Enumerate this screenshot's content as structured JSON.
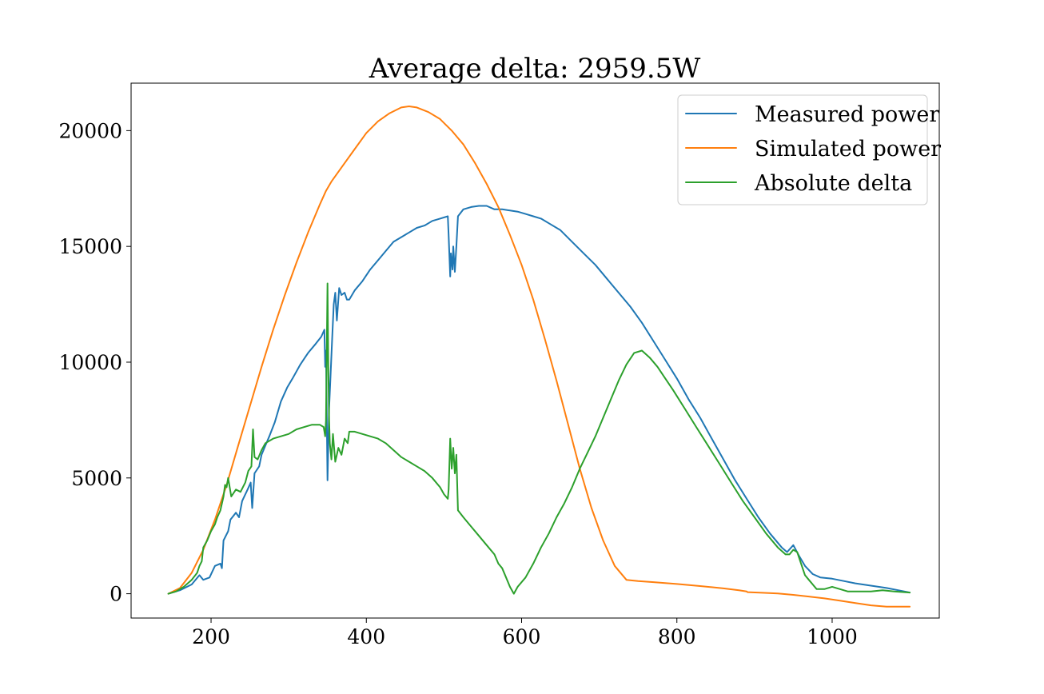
{
  "chart_data": {
    "type": "line",
    "title": "Average delta: 2959.5W",
    "xlabel": "",
    "ylabel": "",
    "xlim": [
      97,
      1138
    ],
    "ylim": [
      -1050,
      22050
    ],
    "xticks": [
      200,
      400,
      600,
      800,
      1000
    ],
    "yticks": [
      0,
      5000,
      10000,
      15000,
      20000
    ],
    "grid": false,
    "legend_position": "top-right",
    "series": [
      {
        "name": "Measured power",
        "color": "#1f77b4",
        "points": [
          [
            145,
            0
          ],
          [
            160,
            150
          ],
          [
            175,
            400
          ],
          [
            185,
            800
          ],
          [
            190,
            600
          ],
          [
            198,
            700
          ],
          [
            205,
            1200
          ],
          [
            212,
            1300
          ],
          [
            214,
            1100
          ],
          [
            216,
            2300
          ],
          [
            222,
            2700
          ],
          [
            225,
            3200
          ],
          [
            232,
            3500
          ],
          [
            236,
            3300
          ],
          [
            240,
            4000
          ],
          [
            247,
            4500
          ],
          [
            251,
            4800
          ],
          [
            253,
            3700
          ],
          [
            256,
            5200
          ],
          [
            262,
            5500
          ],
          [
            265,
            6000
          ],
          [
            270,
            6400
          ],
          [
            275,
            6800
          ],
          [
            282,
            7400
          ],
          [
            290,
            8300
          ],
          [
            298,
            8900
          ],
          [
            305,
            9300
          ],
          [
            315,
            9900
          ],
          [
            325,
            10400
          ],
          [
            335,
            10800
          ],
          [
            342,
            11100
          ],
          [
            346,
            11400
          ],
          [
            347,
            9800
          ],
          [
            348,
            10500
          ],
          [
            350,
            4900
          ],
          [
            352,
            8000
          ],
          [
            354,
            9500
          ],
          [
            356,
            11000
          ],
          [
            358,
            12500
          ],
          [
            360,
            13000
          ],
          [
            362,
            11800
          ],
          [
            365,
            13200
          ],
          [
            368,
            12900
          ],
          [
            372,
            13000
          ],
          [
            375,
            12700
          ],
          [
            378,
            12700
          ],
          [
            385,
            13100
          ],
          [
            395,
            13500
          ],
          [
            405,
            14000
          ],
          [
            415,
            14400
          ],
          [
            425,
            14800
          ],
          [
            435,
            15200
          ],
          [
            445,
            15400
          ],
          [
            455,
            15600
          ],
          [
            465,
            15800
          ],
          [
            475,
            15900
          ],
          [
            485,
            16100
          ],
          [
            495,
            16200
          ],
          [
            505,
            16300
          ],
          [
            506,
            15500
          ],
          [
            508,
            13700
          ],
          [
            509,
            14700
          ],
          [
            511,
            14000
          ],
          [
            512,
            15000
          ],
          [
            514,
            13900
          ],
          [
            516,
            15000
          ],
          [
            518,
            16300
          ],
          [
            525,
            16600
          ],
          [
            535,
            16700
          ],
          [
            545,
            16750
          ],
          [
            555,
            16750
          ],
          [
            565,
            16600
          ],
          [
            575,
            16600
          ],
          [
            585,
            16550
          ],
          [
            595,
            16500
          ],
          [
            605,
            16400
          ],
          [
            615,
            16300
          ],
          [
            625,
            16200
          ],
          [
            635,
            16000
          ],
          [
            650,
            15700
          ],
          [
            665,
            15200
          ],
          [
            680,
            14700
          ],
          [
            695,
            14200
          ],
          [
            710,
            13600
          ],
          [
            725,
            13000
          ],
          [
            740,
            12400
          ],
          [
            755,
            11700
          ],
          [
            770,
            10900
          ],
          [
            785,
            10100
          ],
          [
            800,
            9300
          ],
          [
            815,
            8400
          ],
          [
            830,
            7600
          ],
          [
            845,
            6700
          ],
          [
            860,
            5800
          ],
          [
            875,
            4900
          ],
          [
            890,
            4100
          ],
          [
            905,
            3300
          ],
          [
            920,
            2600
          ],
          [
            935,
            2000
          ],
          [
            942,
            1800
          ],
          [
            950,
            2100
          ],
          [
            958,
            1600
          ],
          [
            965,
            1200
          ],
          [
            975,
            850
          ],
          [
            985,
            700
          ],
          [
            1000,
            650
          ],
          [
            1015,
            550
          ],
          [
            1030,
            450
          ],
          [
            1050,
            350
          ],
          [
            1070,
            250
          ],
          [
            1085,
            150
          ],
          [
            1100,
            50
          ]
        ]
      },
      {
        "name": "Simulated power",
        "color": "#ff7f0e",
        "points": [
          [
            145,
            0
          ],
          [
            160,
            250
          ],
          [
            175,
            900
          ],
          [
            190,
            1900
          ],
          [
            205,
            3200
          ],
          [
            220,
            4700
          ],
          [
            235,
            6400
          ],
          [
            250,
            8100
          ],
          [
            265,
            9800
          ],
          [
            280,
            11400
          ],
          [
            295,
            12900
          ],
          [
            310,
            14300
          ],
          [
            325,
            15600
          ],
          [
            340,
            16800
          ],
          [
            348,
            17400
          ],
          [
            355,
            17800
          ],
          [
            370,
            18500
          ],
          [
            385,
            19200
          ],
          [
            400,
            19900
          ],
          [
            415,
            20400
          ],
          [
            430,
            20750
          ],
          [
            445,
            21000
          ],
          [
            455,
            21050
          ],
          [
            465,
            21000
          ],
          [
            480,
            20800
          ],
          [
            495,
            20500
          ],
          [
            510,
            20000
          ],
          [
            525,
            19400
          ],
          [
            540,
            18600
          ],
          [
            555,
            17700
          ],
          [
            570,
            16700
          ],
          [
            585,
            15500
          ],
          [
            600,
            14200
          ],
          [
            615,
            12700
          ],
          [
            630,
            11000
          ],
          [
            645,
            9200
          ],
          [
            660,
            7300
          ],
          [
            675,
            5400
          ],
          [
            690,
            3700
          ],
          [
            705,
            2300
          ],
          [
            720,
            1200
          ],
          [
            735,
            600
          ],
          [
            750,
            550
          ],
          [
            770,
            500
          ],
          [
            800,
            420
          ],
          [
            830,
            330
          ],
          [
            860,
            230
          ],
          [
            880,
            150
          ],
          [
            890,
            100
          ],
          [
            891,
            70
          ],
          [
            910,
            40
          ],
          [
            930,
            10
          ],
          [
            950,
            -50
          ],
          [
            970,
            -120
          ],
          [
            990,
            -200
          ],
          [
            1010,
            -300
          ],
          [
            1030,
            -400
          ],
          [
            1050,
            -500
          ],
          [
            1070,
            -560
          ],
          [
            1100,
            -560
          ]
        ]
      },
      {
        "name": "Absolute delta",
        "color": "#2ca02c",
        "points": [
          [
            145,
            0
          ],
          [
            155,
            100
          ],
          [
            165,
            300
          ],
          [
            175,
            600
          ],
          [
            182,
            900
          ],
          [
            185,
            1200
          ],
          [
            188,
            1400
          ],
          [
            190,
            2000
          ],
          [
            195,
            2300
          ],
          [
            200,
            2700
          ],
          [
            205,
            3000
          ],
          [
            208,
            3300
          ],
          [
            212,
            3600
          ],
          [
            216,
            4200
          ],
          [
            218,
            4700
          ],
          [
            220,
            4600
          ],
          [
            222,
            5000
          ],
          [
            226,
            4200
          ],
          [
            232,
            4500
          ],
          [
            238,
            4400
          ],
          [
            244,
            4800
          ],
          [
            248,
            5300
          ],
          [
            252,
            5500
          ],
          [
            254,
            7100
          ],
          [
            256,
            5900
          ],
          [
            260,
            5800
          ],
          [
            265,
            6200
          ],
          [
            270,
            6500
          ],
          [
            280,
            6700
          ],
          [
            290,
            6800
          ],
          [
            300,
            6900
          ],
          [
            310,
            7100
          ],
          [
            320,
            7200
          ],
          [
            330,
            7300
          ],
          [
            340,
            7300
          ],
          [
            345,
            7200
          ],
          [
            347,
            6800
          ],
          [
            348,
            7500
          ],
          [
            350,
            13400
          ],
          [
            351,
            9800
          ],
          [
            352,
            7500
          ],
          [
            353,
            6500
          ],
          [
            355,
            5800
          ],
          [
            357,
            6900
          ],
          [
            360,
            5700
          ],
          [
            364,
            6300
          ],
          [
            368,
            6000
          ],
          [
            372,
            6700
          ],
          [
            376,
            6500
          ],
          [
            378,
            7000
          ],
          [
            385,
            7000
          ],
          [
            395,
            6900
          ],
          [
            405,
            6800
          ],
          [
            415,
            6700
          ],
          [
            425,
            6500
          ],
          [
            435,
            6200
          ],
          [
            445,
            5900
          ],
          [
            455,
            5700
          ],
          [
            465,
            5500
          ],
          [
            475,
            5300
          ],
          [
            485,
            5000
          ],
          [
            495,
            4600
          ],
          [
            500,
            4300
          ],
          [
            505,
            4100
          ],
          [
            506,
            4500
          ],
          [
            508,
            6700
          ],
          [
            510,
            5400
          ],
          [
            512,
            6300
          ],
          [
            514,
            5200
          ],
          [
            516,
            6000
          ],
          [
            518,
            3600
          ],
          [
            525,
            3300
          ],
          [
            535,
            2900
          ],
          [
            545,
            2500
          ],
          [
            555,
            2100
          ],
          [
            565,
            1700
          ],
          [
            570,
            1300
          ],
          [
            575,
            1100
          ],
          [
            580,
            700
          ],
          [
            585,
            300
          ],
          [
            590,
            0
          ],
          [
            595,
            300
          ],
          [
            605,
            700
          ],
          [
            615,
            1300
          ],
          [
            625,
            2000
          ],
          [
            635,
            2600
          ],
          [
            645,
            3300
          ],
          [
            655,
            3900
          ],
          [
            665,
            4600
          ],
          [
            675,
            5400
          ],
          [
            685,
            6100
          ],
          [
            695,
            6800
          ],
          [
            705,
            7600
          ],
          [
            715,
            8400
          ],
          [
            725,
            9200
          ],
          [
            735,
            9900
          ],
          [
            745,
            10400
          ],
          [
            755,
            10500
          ],
          [
            765,
            10200
          ],
          [
            775,
            9800
          ],
          [
            785,
            9300
          ],
          [
            795,
            8800
          ],
          [
            810,
            8000
          ],
          [
            825,
            7200
          ],
          [
            840,
            6400
          ],
          [
            855,
            5600
          ],
          [
            870,
            4800
          ],
          [
            885,
            4000
          ],
          [
            900,
            3300
          ],
          [
            915,
            2600
          ],
          [
            930,
            2000
          ],
          [
            940,
            1700
          ],
          [
            945,
            1700
          ],
          [
            950,
            1900
          ],
          [
            955,
            1800
          ],
          [
            960,
            1300
          ],
          [
            965,
            800
          ],
          [
            970,
            600
          ],
          [
            975,
            400
          ],
          [
            980,
            200
          ],
          [
            990,
            200
          ],
          [
            1000,
            300
          ],
          [
            1010,
            200
          ],
          [
            1020,
            100
          ],
          [
            1035,
            100
          ],
          [
            1050,
            100
          ],
          [
            1065,
            150
          ],
          [
            1080,
            100
          ],
          [
            1100,
            50
          ]
        ]
      }
    ]
  }
}
